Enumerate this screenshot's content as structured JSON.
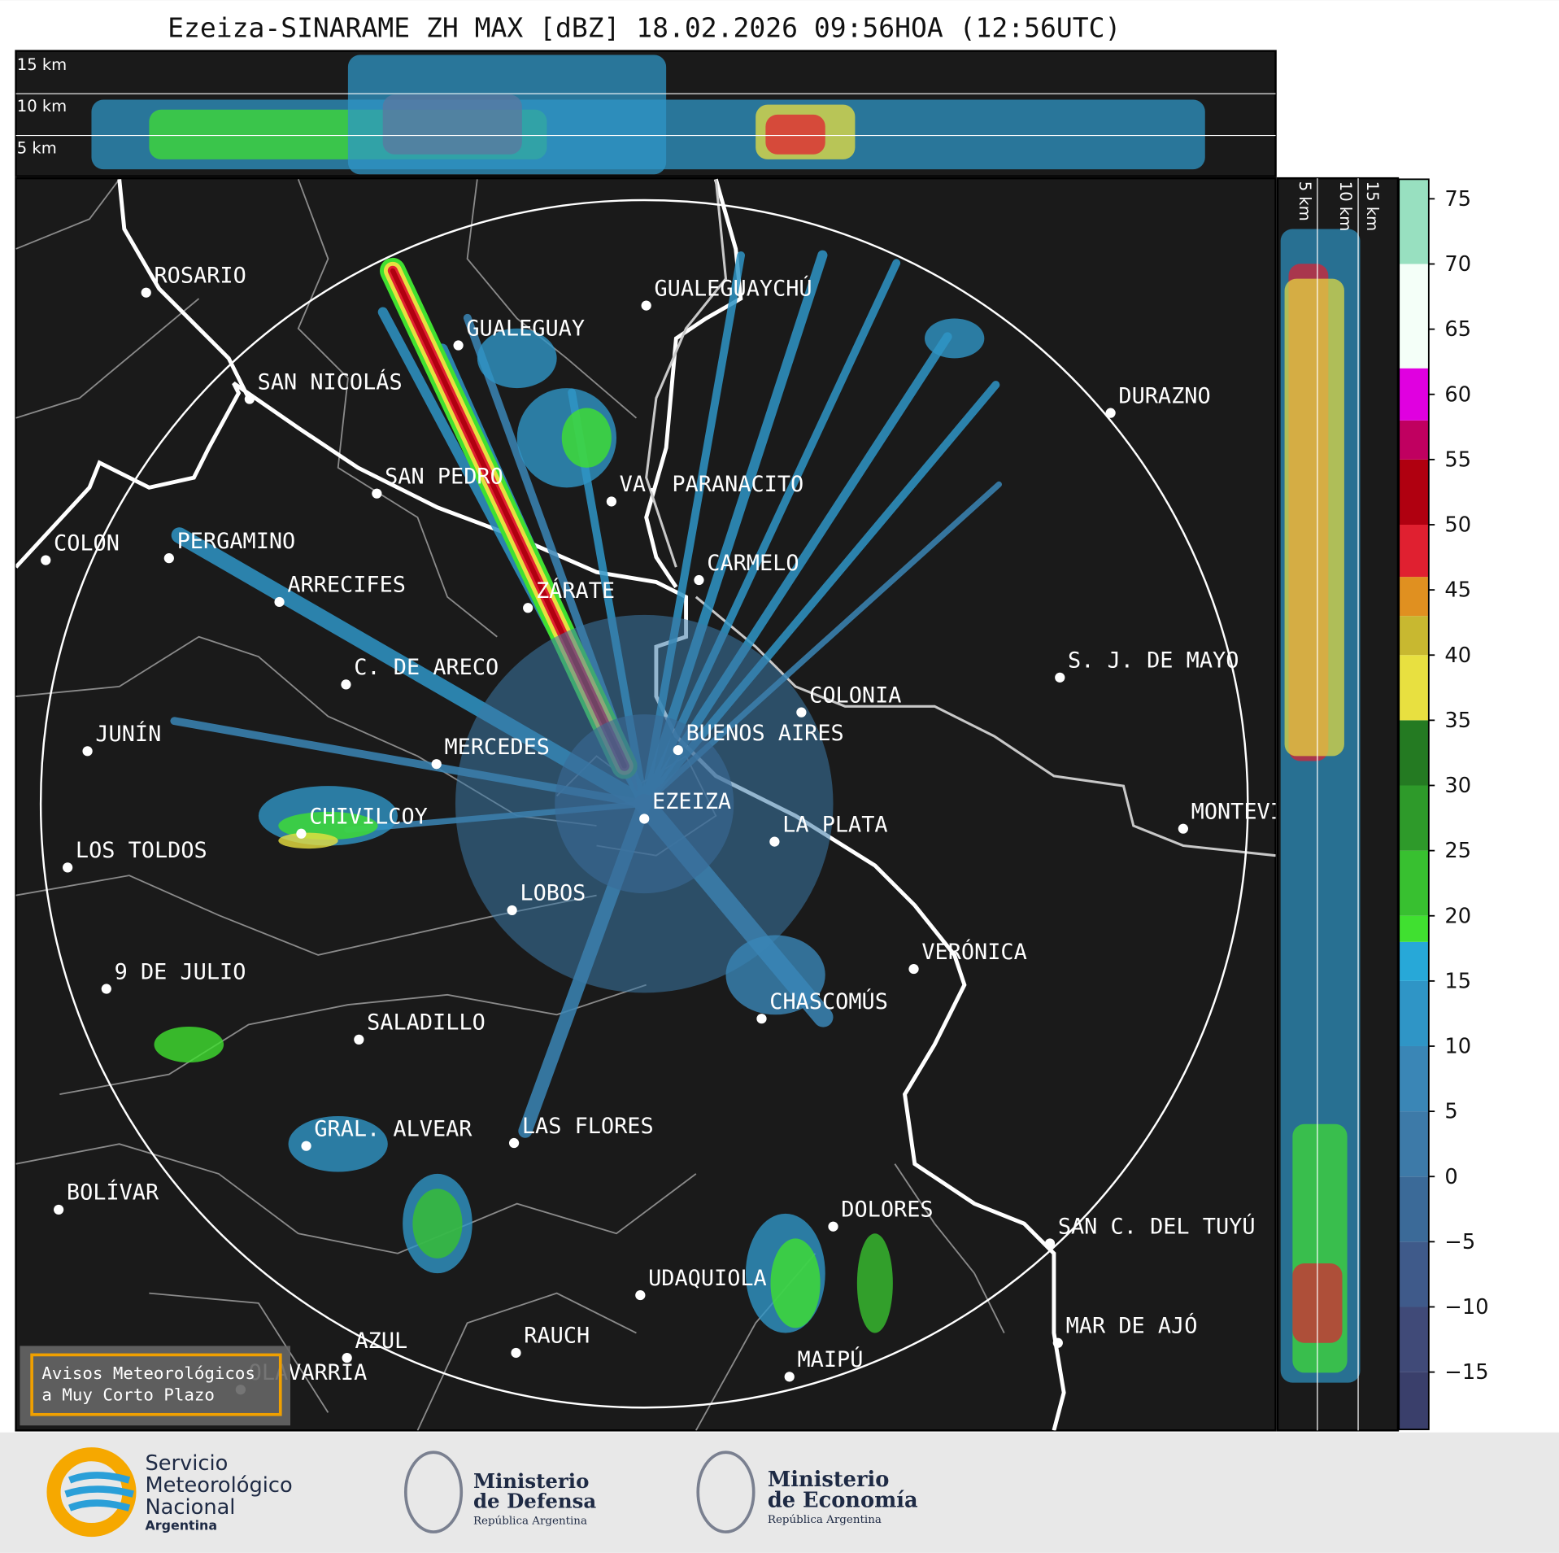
{
  "title": "Ezeiza-SINARAME ZH MAX [dBZ] 18.02.2026 09:56HOA (12:56UTC)",
  "top_heights": [
    "15 km",
    "10 km",
    "5 km"
  ],
  "side_heights": [
    "5 km",
    "10 km",
    "15 km"
  ],
  "cities": [
    "ROSARIO",
    "GUALEGUAYCHÚ",
    "GUALEGUAY",
    "SAN NICOLÁS",
    "DURAZNO",
    "SAN PEDRO",
    "VA. PARANACITO",
    "COLON",
    "PERGAMINO",
    "CARMELO",
    "ARRECIFES",
    "ZÁRATE",
    "S. J. DE MAYO",
    "C. DE ARECO",
    "COLONIA",
    "BUENOS AIRES",
    "JUNÍN",
    "MERCEDES",
    "EZEIZA",
    "MONTEVIDEO",
    "CHIVILCOY",
    "LA PLATA",
    "LOS TOLDOS",
    "LOBOS",
    "VERÓNICA",
    "9 DE JULIO",
    "CHASCOMÚS",
    "SALADILLO",
    "GRAL. ALVEAR",
    "LAS FLORES",
    "BOLÍVAR",
    "DOLORES",
    "SAN C. DEL TUYÚ",
    "UDAQUIOLA",
    "MAR DE AJÓ",
    "AZUL",
    "RAUCH",
    "OLAVARRÍA",
    "MAIPÚ"
  ],
  "colorbar": {
    "lim": [
      -19.4,
      76.5
    ],
    "ticks": [
      {
        "value": -15,
        "label": "−15"
      },
      {
        "value": -10,
        "label": "−10"
      },
      {
        "value": -5,
        "label": "−5"
      },
      0,
      5,
      10,
      15,
      20,
      25,
      30,
      35,
      40,
      45,
      50,
      55,
      60,
      65,
      70,
      75
    ],
    "bounds": [
      -15,
      -10,
      -5,
      0,
      5,
      10,
      15,
      18,
      20,
      25,
      30,
      35,
      40,
      43,
      46,
      50,
      55,
      58,
      62,
      70
    ],
    "colors": [
      "#3a3f6b",
      "#404a78",
      "#3f5a8a",
      "#3b6a98",
      "#3d7aa8",
      "#3a86b6",
      "#2f95c6",
      "#27a8d8",
      "#40e030",
      "#38c030",
      "#2e9a2a",
      "#247a22",
      "#e8e040",
      "#c8b830",
      "#e09020",
      "#e02030",
      "#b00010",
      "#c00060",
      "#e000e0",
      "#f4fff8",
      "#98e0c0"
    ]
  },
  "notice": [
    "Avisos Meteorológicos",
    "a Muy Corto Plazo"
  ],
  "logos": {
    "smn": [
      "Servicio",
      "Meteorológico",
      "Nacional",
      "Argentina"
    ],
    "defensa": [
      "Ministerio",
      "de Defensa",
      "República Argentina"
    ],
    "economia": [
      "Ministerio",
      "de Economía",
      "República Argentina"
    ]
  }
}
